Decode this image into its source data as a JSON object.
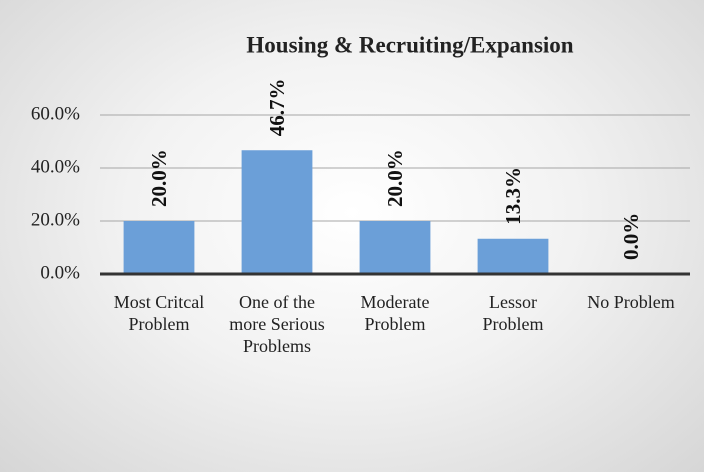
{
  "chart_data": {
    "type": "bar",
    "title": "Housing & Recruiting/Expansion",
    "categories": [
      "Most Critcal Problem",
      "One of the more Serious Problems",
      "Moderate Problem",
      "Lessor Problem",
      "No Problem"
    ],
    "values": [
      20,
      46.7,
      20,
      13.3,
      0
    ],
    "value_labels": [
      "20.0%",
      "46.7%",
      "20.0%",
      "13.3%",
      "0.0%"
    ],
    "color": "#6b9fd8",
    "ylim": [
      0,
      60
    ],
    "yticks": [
      {
        "value": 0,
        "label": "0.0%"
      },
      {
        "value": 20,
        "label": "20.0%"
      },
      {
        "value": 40,
        "label": "40.0%"
      },
      {
        "value": 60,
        "label": "60.0%"
      }
    ],
    "grid": true
  }
}
